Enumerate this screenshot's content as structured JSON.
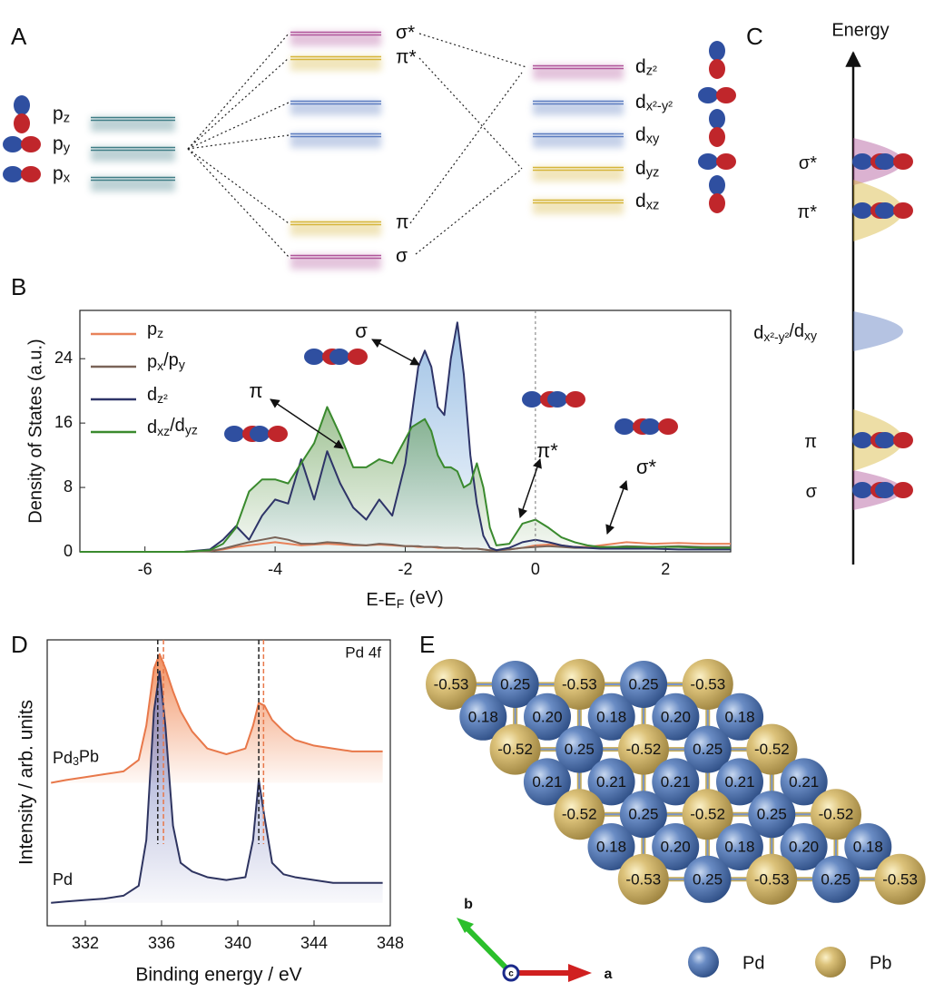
{
  "panel_labels": [
    "A",
    "B",
    "C",
    "D",
    "E"
  ],
  "mo_diagram": {
    "p_orbitals": [
      [
        "p",
        {
          "sub": "z"
        }
      ],
      [
        "p",
        {
          "sub": "y"
        }
      ],
      [
        "p",
        {
          "sub": "x"
        }
      ]
    ],
    "mo_levels": [
      "σ*",
      "π*",
      "π",
      "σ"
    ],
    "d_orbitals": [
      [
        "d",
        {
          "sub": "z²"
        }
      ],
      [
        "d",
        {
          "sub": "x²-y²"
        }
      ],
      [
        "d",
        {
          "sub": "xy"
        }
      ],
      [
        "d",
        {
          "sub": "yz"
        }
      ],
      [
        "d",
        {
          "sub": "xz"
        }
      ]
    ]
  },
  "energy_diagram": {
    "axis_label": "Energy",
    "levels": [
      [
        "σ*"
      ],
      [
        "π*"
      ],
      [
        "d",
        {
          "sub": "x²-y²"
        },
        "/d",
        {
          "sub": "xy"
        }
      ],
      [
        "π"
      ],
      [
        "σ"
      ]
    ]
  },
  "chart_data": [
    {
      "type": "line",
      "y_label": "Density of States (a.u.)",
      "x_label": [
        "E-E",
        {
          "sub": "F"
        },
        " (eV)"
      ],
      "x": [
        -7,
        -6,
        -5.4,
        -5.0,
        -4.8,
        -4.6,
        -4.4,
        -4.2,
        -4.0,
        -3.8,
        -3.6,
        -3.4,
        -3.2,
        -3.0,
        -2.8,
        -2.6,
        -2.4,
        -2.2,
        -2.0,
        -1.9,
        -1.8,
        -1.7,
        -1.6,
        -1.5,
        -1.4,
        -1.3,
        -1.2,
        -1.1,
        -1.0,
        -0.9,
        -0.8,
        -0.7,
        -0.6,
        -0.4,
        -0.2,
        0,
        0.2,
        0.4,
        0.6,
        0.8,
        1.0,
        1.4,
        1.8,
        2.2,
        2.6,
        3.0
      ],
      "series": [
        {
          "name": [
            "p",
            {
              "sub": "z"
            }
          ],
          "color": "#e8825a",
          "values": [
            0,
            0,
            0,
            0.1,
            0.3,
            0.6,
            0.8,
            1.0,
            1.2,
            1.0,
            0.8,
            0.9,
            1.0,
            0.9,
            0.8,
            0.8,
            0.9,
            0.8,
            0.7,
            0.7,
            0.6,
            0.6,
            0.6,
            0.5,
            0.5,
            0.5,
            0.5,
            0.4,
            0.4,
            0.4,
            0.3,
            0.2,
            0.2,
            0.3,
            0.5,
            0.8,
            0.9,
            0.8,
            0.6,
            0.6,
            0.8,
            1.2,
            1.0,
            1.1,
            1.0,
            1.0
          ]
        },
        {
          "name": [
            "p",
            {
              "sub": "x"
            },
            "/p",
            {
              "sub": "y"
            }
          ],
          "color": "#7a6458",
          "values": [
            0,
            0,
            0,
            0.1,
            0.4,
            0.8,
            1.2,
            1.5,
            1.8,
            1.5,
            1.0,
            1.0,
            1.2,
            1.1,
            0.9,
            0.8,
            1.0,
            0.9,
            0.7,
            0.7,
            0.7,
            0.6,
            0.6,
            0.6,
            0.5,
            0.5,
            0.5,
            0.4,
            0.4,
            0.4,
            0.3,
            0.2,
            0.2,
            0.3,
            0.5,
            0.6,
            0.7,
            0.6,
            0.5,
            0.5,
            0.5,
            0.7,
            0.6,
            0.7,
            0.6,
            0.6
          ]
        },
        {
          "name": [
            "d",
            {
              "sub": "z²"
            }
          ],
          "color": "#2e3468",
          "fill": "#4f8fd0",
          "values": [
            0,
            0,
            0,
            0.3,
            1.5,
            3.2,
            1.5,
            4.5,
            6.5,
            6.0,
            11.5,
            6.5,
            12.5,
            8.5,
            5.5,
            4.0,
            6.5,
            4.5,
            11.0,
            17,
            23,
            25,
            23,
            18,
            17,
            24,
            28.5,
            22,
            12,
            6,
            2,
            0.5,
            0.2,
            0.5,
            1.2,
            1.5,
            1.2,
            0.8,
            0.6,
            0.5,
            0.4,
            0.4,
            0.4,
            0.3,
            0.3,
            0.3
          ]
        },
        {
          "name": [
            "d",
            {
              "sub": "xz"
            },
            "/d",
            {
              "sub": "yz"
            }
          ],
          "color": "#3a8a2e",
          "fill": "#4f8f3a",
          "values": [
            0,
            0,
            0,
            0.2,
            1.0,
            3.0,
            7.5,
            9.0,
            9.0,
            8.5,
            11.0,
            13.5,
            18.0,
            14.5,
            10.5,
            10.5,
            11.5,
            11.0,
            14.0,
            15.5,
            16.0,
            16.5,
            15.0,
            12.0,
            10.5,
            10.5,
            10.0,
            8.0,
            8.5,
            11.0,
            8.0,
            3.0,
            0.8,
            1.0,
            3.5,
            4.0,
            3.0,
            1.8,
            1.2,
            0.8,
            0.6,
            0.6,
            0.6,
            0.6,
            0.5,
            0.5
          ]
        }
      ],
      "xlim": [
        -7,
        3
      ],
      "xticks": [
        -6,
        -4,
        -2,
        0,
        2
      ],
      "ylim": [
        0,
        30
      ],
      "yticks": [
        0,
        8,
        16,
        24
      ],
      "reference_x": 0,
      "annotations": [
        "σ",
        "π",
        "π*",
        "σ*"
      ],
      "legend": "upper left"
    },
    {
      "type": "line",
      "x_label": "Binding energy / eV",
      "y_label": "Intensity / arb. units",
      "annotation": "Pd 4f",
      "x": [
        330.2,
        331,
        332,
        333,
        334,
        334.8,
        335.2,
        335.6,
        335.9,
        336.2,
        336.6,
        337,
        337.6,
        338.4,
        339.4,
        340.4,
        340.8,
        341.1,
        341.4,
        341.8,
        342.4,
        343,
        344,
        345,
        346,
        347,
        347.6
      ],
      "series": [
        {
          "name": [
            "Pd",
            {
              "sub": "3"
            },
            "Pb"
          ],
          "color": "#e8784a",
          "fill": "#f0844f",
          "values": [
            50,
            51,
            52,
            53,
            54,
            58,
            70,
            90,
            95,
            90,
            82,
            75,
            68,
            62,
            60,
            62,
            70,
            78,
            77,
            72,
            68,
            65,
            63,
            62,
            61,
            61,
            61
          ]
        },
        {
          "name": [
            "Pd"
          ],
          "color": "#2e3460",
          "fill": "#7b83c0",
          "values": [
            8,
            8.5,
            9,
            9.5,
            10.5,
            14,
            30,
            75,
            89,
            70,
            35,
            22,
            19,
            17,
            16,
            17,
            30,
            51,
            38,
            22,
            18,
            17,
            16,
            15,
            15,
            15,
            15
          ]
        }
      ],
      "xlim": [
        330,
        348
      ],
      "xticks": [
        332,
        336,
        340,
        344,
        348
      ],
      "ylim": [
        0,
        100
      ],
      "reference_lines": [
        {
          "x": 335.8,
          "color": "#222222"
        },
        {
          "x": 336.1,
          "color": "#e8784a"
        },
        {
          "x": 341.1,
          "color": "#222222"
        },
        {
          "x": 341.35,
          "color": "#e8784a"
        }
      ]
    }
  ],
  "lattice": {
    "rows": [
      [
        "-0.53",
        "0.25",
        "-0.53",
        "0.25",
        "-0.53"
      ],
      [
        "0.18",
        "0.20",
        "0.18",
        "0.20",
        "0.18"
      ],
      [
        "-0.52",
        "0.25",
        "-0.52",
        "0.25",
        "-0.52"
      ],
      [
        "0.21",
        "0.21",
        "0.21",
        "0.21",
        "0.21"
      ],
      [
        "-0.52",
        "0.25",
        "-0.52",
        "0.25",
        "-0.52"
      ],
      [
        "0.18",
        "0.20",
        "0.18",
        "0.20",
        "0.18"
      ],
      [
        "-0.53",
        "0.25",
        "-0.53",
        "0.25",
        "-0.53"
      ]
    ],
    "axes": [
      "b",
      "c",
      "a"
    ],
    "legend": [
      "Pd",
      "Pb"
    ]
  }
}
